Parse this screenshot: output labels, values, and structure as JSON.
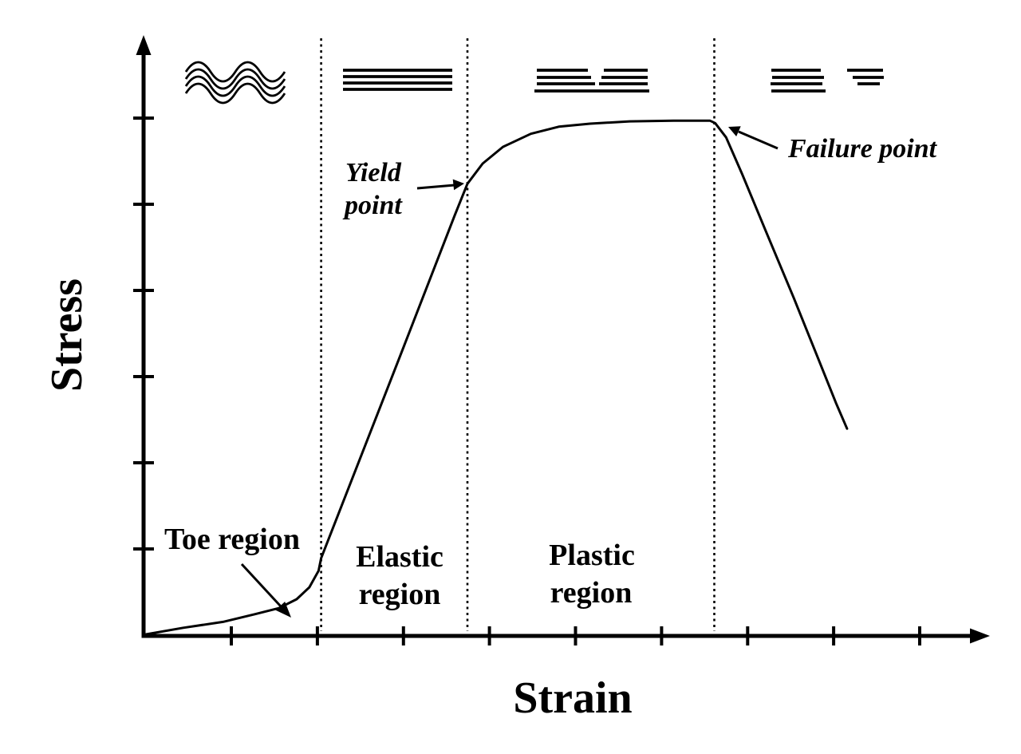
{
  "figure": {
    "background": "#ffffff",
    "ink_color": "#000000",
    "annotations": {
      "toe": "Toe region",
      "elastic": [
        "Elastic",
        "region"
      ],
      "plastic": [
        "Plastic",
        "region"
      ],
      "yield": [
        "Yield",
        "point"
      ],
      "failure": "Failure point"
    },
    "fiber_state_icons": [
      {
        "icon": "crimped-fibers-icon",
        "region": "Toe region"
      },
      {
        "icon": "aligned-fibers-icon",
        "region": "Elastic region"
      },
      {
        "icon": "partially-torn-fibers-icon",
        "region": "Plastic region"
      },
      {
        "icon": "ruptured-fibers-icon",
        "region": "Failure"
      }
    ]
  },
  "chart_data": {
    "type": "line",
    "xlabel": "Strain",
    "ylabel": "Stress",
    "tick_labels": "none (unlabeled schematic axes)",
    "x_tick_count": 9,
    "y_tick_count": 6,
    "grid": false,
    "legend": "none",
    "region_boundaries_x": [
      0.21,
      0.383,
      0.675
    ],
    "regions": [
      {
        "label": "Toe region",
        "x_range": [
          0.0,
          0.21
        ]
      },
      {
        "label": "Elastic region",
        "x_range": [
          0.21,
          0.383
        ]
      },
      {
        "label": "Plastic region",
        "x_range": [
          0.383,
          0.675
        ]
      },
      {
        "label": "Failure",
        "x_range": [
          0.675,
          0.832
        ]
      }
    ],
    "key_points": [
      {
        "label": "Yield point",
        "x": 0.383,
        "y": 0.758
      },
      {
        "label": "Failure point",
        "x": 0.672,
        "y": 0.864
      }
    ],
    "series": [
      {
        "name": "stress-strain curve",
        "points_normalized": [
          [
            0.003,
            0.0
          ],
          [
            0.047,
            0.011
          ],
          [
            0.094,
            0.021
          ],
          [
            0.132,
            0.034
          ],
          [
            0.16,
            0.044
          ],
          [
            0.181,
            0.059
          ],
          [
            0.196,
            0.079
          ],
          [
            0.207,
            0.107
          ],
          [
            0.21,
            0.128
          ],
          [
            0.302,
            0.463
          ],
          [
            0.368,
            0.705
          ],
          [
            0.383,
            0.758
          ],
          [
            0.401,
            0.792
          ],
          [
            0.425,
            0.82
          ],
          [
            0.458,
            0.842
          ],
          [
            0.491,
            0.854
          ],
          [
            0.528,
            0.859
          ],
          [
            0.575,
            0.863
          ],
          [
            0.627,
            0.864
          ],
          [
            0.67,
            0.864
          ],
          [
            0.676,
            0.86
          ],
          [
            0.689,
            0.836
          ],
          [
            0.708,
            0.774
          ],
          [
            0.736,
            0.678
          ],
          [
            0.769,
            0.566
          ],
          [
            0.797,
            0.467
          ],
          [
            0.819,
            0.389
          ],
          [
            0.832,
            0.346
          ]
        ]
      }
    ]
  }
}
